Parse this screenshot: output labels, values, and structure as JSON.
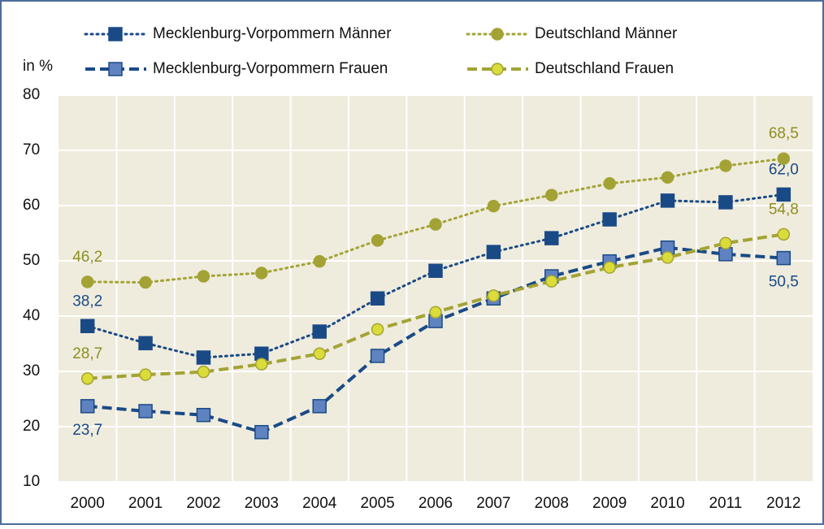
{
  "chart_data": {
    "type": "line",
    "y_axis_label": "in %",
    "categories": [
      "2000",
      "2001",
      "2002",
      "2003",
      "2004",
      "2005",
      "2006",
      "2007",
      "2008",
      "2009",
      "2010",
      "2011",
      "2012"
    ],
    "ylim": [
      10,
      80
    ],
    "yticks": [
      10,
      20,
      30,
      40,
      50,
      60,
      70,
      80
    ],
    "grid": true,
    "series": [
      {
        "name": "Mecklenburg-Vorpommern Männer",
        "color": "#1a4a86",
        "marker_fill": "#1a4a86",
        "line_style": "dotted",
        "marker": "square",
        "values": [
          38.2,
          35.1,
          32.5,
          33.2,
          37.2,
          43.2,
          48.2,
          51.6,
          54.1,
          57.5,
          60.9,
          60.6,
          62.0
        ],
        "value_labels": [
          "38,2",
          null,
          null,
          null,
          null,
          null,
          null,
          null,
          null,
          null,
          null,
          null,
          "62,0"
        ]
      },
      {
        "name": "Deutschland  Männer",
        "color": "#a3a335",
        "marker_fill": "#a3a335",
        "line_style": "dotted",
        "marker": "circle",
        "values": [
          46.2,
          46.1,
          47.2,
          47.8,
          49.9,
          53.7,
          56.6,
          59.9,
          61.9,
          64.0,
          65.1,
          67.2,
          68.5
        ],
        "value_labels": [
          "46,2",
          null,
          null,
          null,
          null,
          null,
          null,
          null,
          null,
          null,
          null,
          null,
          "68,5"
        ]
      },
      {
        "name": "Mecklenburg-Vorpommern Frauen",
        "color": "#1a4a86",
        "marker_fill": "#5f82c0",
        "line_style": "dashed",
        "marker": "square",
        "values": [
          23.7,
          22.8,
          22.1,
          19.0,
          23.7,
          32.8,
          39.1,
          43.2,
          47.2,
          49.9,
          52.4,
          51.2,
          50.5
        ],
        "value_labels": [
          "23,7",
          null,
          null,
          null,
          null,
          null,
          null,
          null,
          null,
          null,
          null,
          null,
          "50,5"
        ]
      },
      {
        "name": "Deutschland  Frauen",
        "color": "#a3a335",
        "marker_fill": "#dadc3a",
        "line_style": "dashed",
        "marker": "circle",
        "values": [
          28.7,
          29.4,
          29.9,
          31.3,
          33.2,
          37.6,
          40.7,
          43.7,
          46.3,
          48.8,
          50.6,
          53.2,
          54.8
        ],
        "value_labels": [
          "28,7",
          null,
          null,
          null,
          null,
          null,
          null,
          null,
          null,
          null,
          null,
          null,
          "54,8"
        ]
      }
    ]
  }
}
